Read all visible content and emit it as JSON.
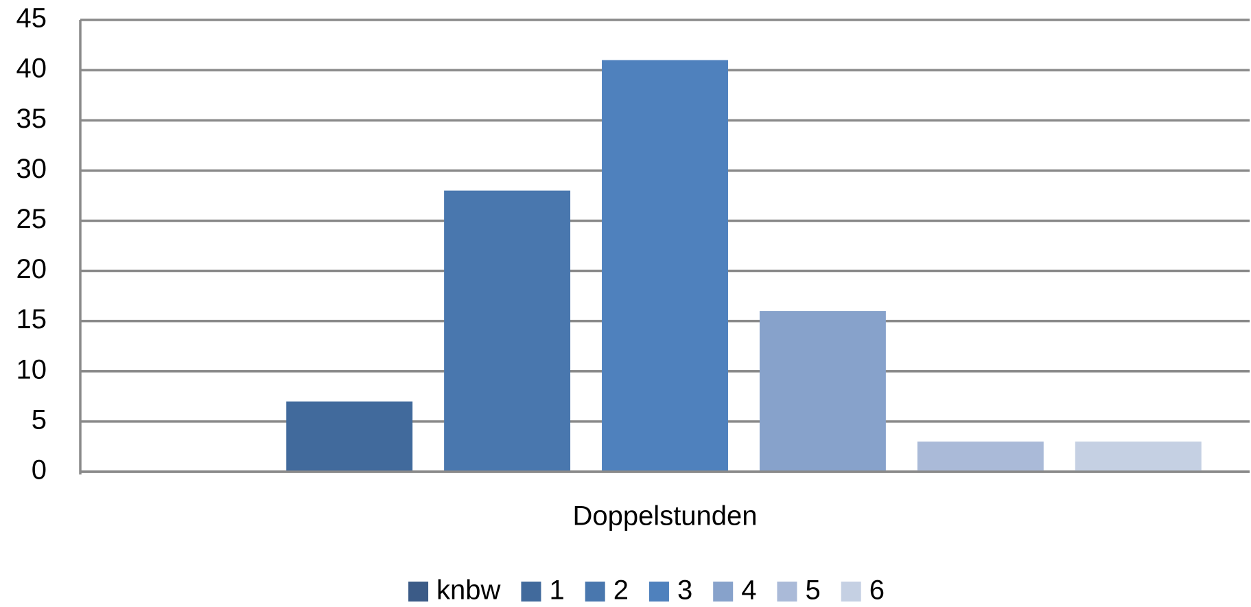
{
  "chart_data": {
    "type": "bar",
    "x_label": "Doppelstunden",
    "categories": [
      "Doppelstunden"
    ],
    "series": [
      {
        "name": "knbw",
        "color": "#3b5b87",
        "values": [
          0
        ]
      },
      {
        "name": "1",
        "color": "#416a9c",
        "values": [
          7
        ]
      },
      {
        "name": "2",
        "color": "#4977ae",
        "values": [
          28
        ]
      },
      {
        "name": "3",
        "color": "#4f81bd",
        "values": [
          41
        ]
      },
      {
        "name": "4",
        "color": "#87a2cb",
        "values": [
          16
        ]
      },
      {
        "name": "5",
        "color": "#aabad8",
        "values": [
          3
        ]
      },
      {
        "name": "6",
        "color": "#c5d0e3",
        "values": [
          3
        ]
      }
    ],
    "ylim": [
      0,
      45
    ],
    "yticks": [
      0,
      5,
      10,
      15,
      20,
      25,
      30,
      35,
      40,
      45
    ],
    "grid": true,
    "legend": "bottom"
  }
}
